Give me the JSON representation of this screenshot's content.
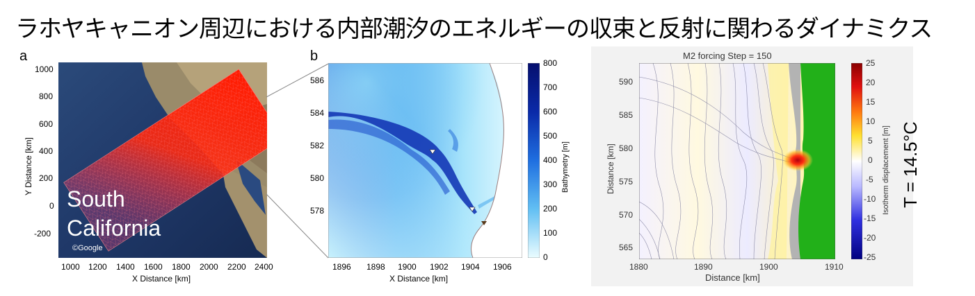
{
  "title": "ラホヤキャニオン周辺における内部潮汐のエネルギーの収束と反射に関わるダイナミクス",
  "panel_a": {
    "letter": "a",
    "map_label_line1": "South",
    "map_label_line2": "California",
    "credit": "©Google",
    "xlabel": "X Distance [km]",
    "ylabel": "Y Distance [km]",
    "xticks": [
      "1000",
      "1200",
      "1400",
      "1600",
      "1800",
      "2000",
      "2200",
      "2400"
    ],
    "yticks": [
      "1000",
      "800",
      "600",
      "400",
      "200",
      "0",
      "-200"
    ]
  },
  "panel_b": {
    "letter": "b",
    "xlabel": "X Distance [km]",
    "xticks": [
      "1896",
      "1898",
      "1900",
      "1902",
      "1904",
      "1906"
    ],
    "yticks": [
      "586",
      "584",
      "582",
      "580",
      "578"
    ],
    "colorbar_label": "Bathymetry [m]",
    "colorbar_ticks": [
      "800",
      "700",
      "600",
      "500",
      "400",
      "300",
      "200",
      "100",
      "0"
    ]
  },
  "panel_c": {
    "plot_title": "M2 forcing  Step = 150",
    "xlabel": "Distance [km]",
    "ylabel": "Distance [km]",
    "xticks": [
      "1880",
      "1890",
      "1900",
      "1910"
    ],
    "yticks": [
      "590",
      "585",
      "580",
      "575",
      "570",
      "565"
    ],
    "colorbar_label": "Isotherm displacement [m]",
    "colorbar_ticks": [
      "25",
      "20",
      "15",
      "10",
      "5",
      "0",
      "-5",
      "-10",
      "-15",
      "-20",
      "-25"
    ],
    "side_label": "T = 14.5°C"
  },
  "colors": {
    "ocean_deep": "#1a2c5e",
    "grid_red": "#ff2a10",
    "bathy_dark": "#0a1a8c",
    "bathy_light": "#e6fbff",
    "land_green": "#22b019",
    "land_gray": "#b3b3b3"
  }
}
